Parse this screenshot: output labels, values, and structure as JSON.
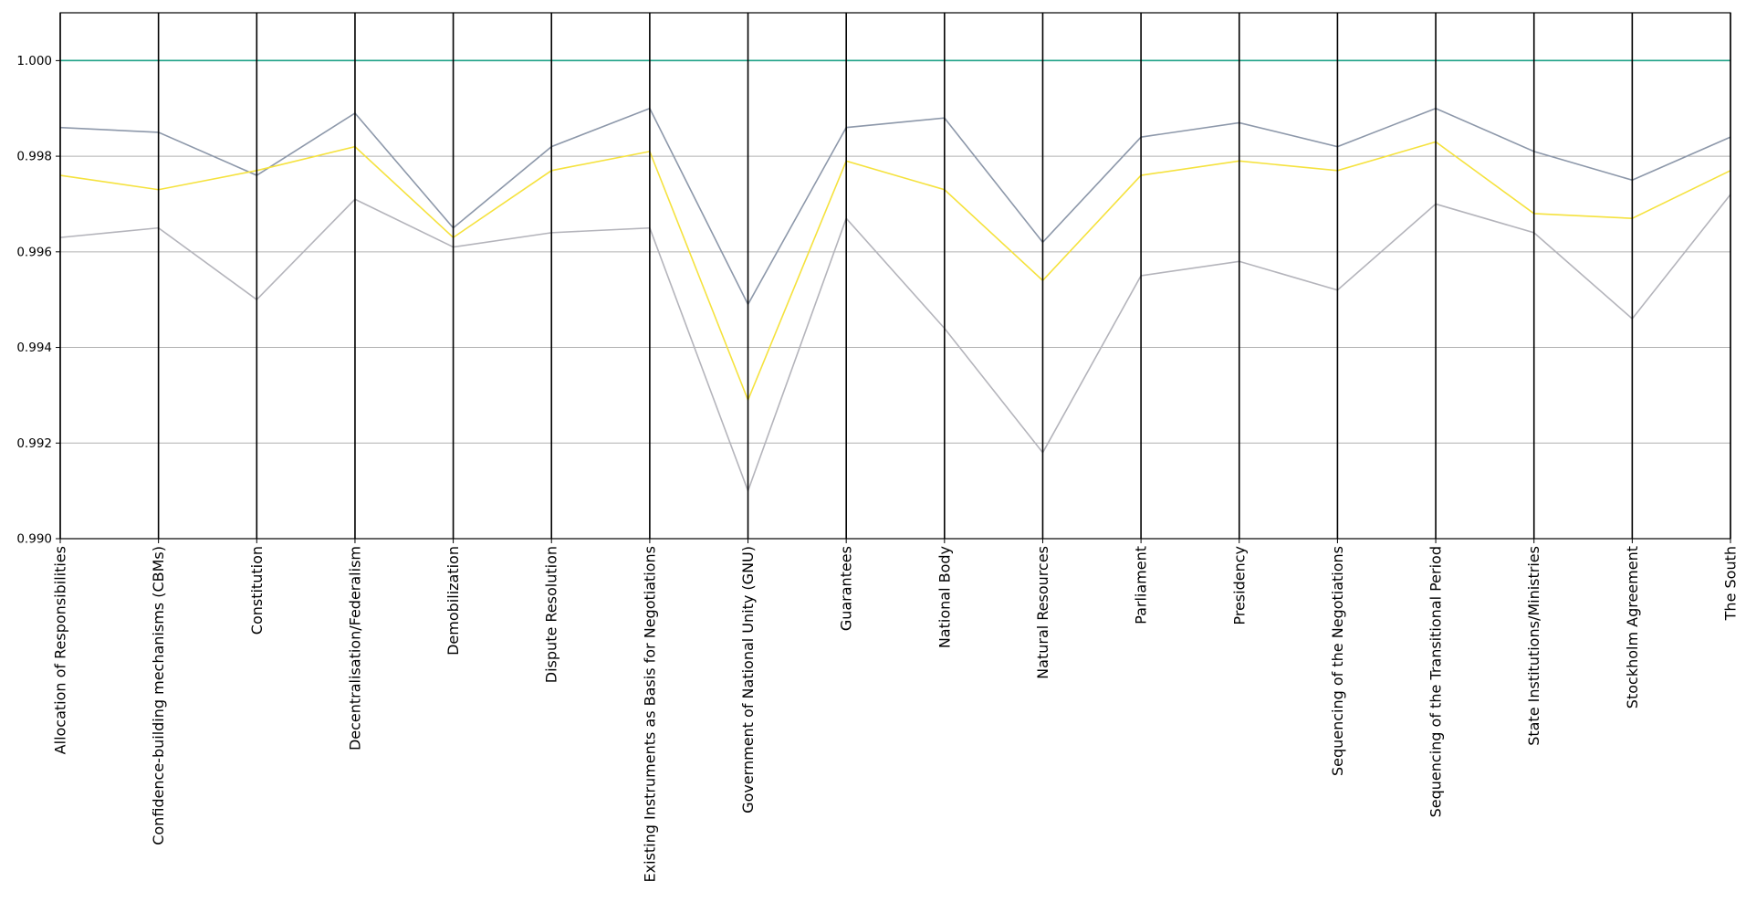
{
  "chart_data": {
    "type": "line",
    "title": "",
    "xlabel": "",
    "ylabel": "",
    "ylim": [
      0.99,
      1.001
    ],
    "yticks": [
      0.99,
      0.992,
      0.994,
      0.996,
      0.998,
      1.0
    ],
    "ytick_labels": [
      "0.990",
      "0.992",
      "0.994",
      "0.996",
      "0.998",
      "1.000"
    ],
    "grid": true,
    "categories": [
      "Allocation of Responsibilities",
      "Confidence-building mechanisms (CBMs)",
      "Constitution",
      "Decentralisation/Federalism",
      "Demobilization",
      "Dispute Resolution",
      "Existing Instruments as Basis for Negotiations",
      "Government of National Unity (GNU)",
      "Guarantees",
      "National Body",
      "Natural Resources",
      "Parliament",
      "Presidency",
      "Sequencing of the Negotiations",
      "Sequencing of the Transitional Period",
      "State Institutions/Ministries",
      "Stockholm Agreement",
      "The South"
    ],
    "series": [
      {
        "color": "#1fa187",
        "values": [
          1.0,
          1.0,
          1.0,
          1.0,
          1.0,
          1.0,
          1.0,
          1.0,
          1.0,
          1.0,
          1.0,
          1.0,
          1.0,
          1.0,
          1.0,
          1.0,
          1.0,
          1.0
        ]
      },
      {
        "color": "#8d98aa",
        "values": [
          0.9986,
          0.9985,
          0.9976,
          0.9989,
          0.9965,
          0.9982,
          0.999,
          0.9949,
          0.9986,
          0.9988,
          0.9962,
          0.9984,
          0.9987,
          0.9982,
          0.999,
          0.9981,
          0.9975,
          0.9984
        ]
      },
      {
        "color": "#f5e23e",
        "values": [
          0.9976,
          0.9973,
          0.9977,
          0.9982,
          0.9963,
          0.9977,
          0.9981,
          0.9929,
          0.9979,
          0.9973,
          0.9954,
          0.9976,
          0.9979,
          0.9977,
          0.9983,
          0.9968,
          0.9967,
          0.9977
        ]
      },
      {
        "color": "#b4b4bb",
        "values": [
          0.9963,
          0.9965,
          0.995,
          0.9971,
          0.9961,
          0.9964,
          0.9965,
          0.991,
          0.9967,
          0.9944,
          0.9918,
          0.9955,
          0.9958,
          0.9952,
          0.997,
          0.9964,
          0.9946,
          0.9972
        ]
      }
    ]
  }
}
